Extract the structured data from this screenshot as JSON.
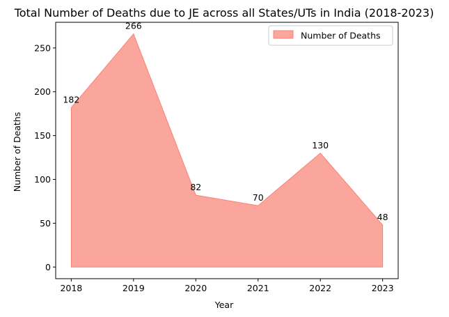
{
  "chart_data": {
    "type": "area",
    "title": "Total Number of Deaths due to JE across all States/UTs in India (2018-2023)",
    "xlabel": "Year",
    "ylabel": "Number of Deaths",
    "x": [
      2018,
      2019,
      2020,
      2021,
      2022,
      2023
    ],
    "x_tick_labels": [
      "2018",
      "2019",
      "2020",
      "2021",
      "2022",
      "2023"
    ],
    "series": [
      {
        "name": "Number of Deaths",
        "values": [
          182,
          266,
          82,
          70,
          130,
          48
        ]
      }
    ],
    "data_labels": [
      "182",
      "266",
      "82",
      "70",
      "130",
      "48"
    ],
    "y_ticks": [
      0,
      50,
      100,
      150,
      200,
      250
    ],
    "y_tick_labels": [
      "0",
      "50",
      "100",
      "150",
      "200",
      "250"
    ],
    "xlim": [
      2017.75,
      2023.25
    ],
    "ylim": [
      -13.3,
      279.3
    ],
    "grid": false,
    "legend_position": "top-right",
    "colors": {
      "fill": "#fa8072",
      "edge": "#fa8072",
      "fill_opacity": 0.7,
      "axis": "#000000"
    }
  }
}
